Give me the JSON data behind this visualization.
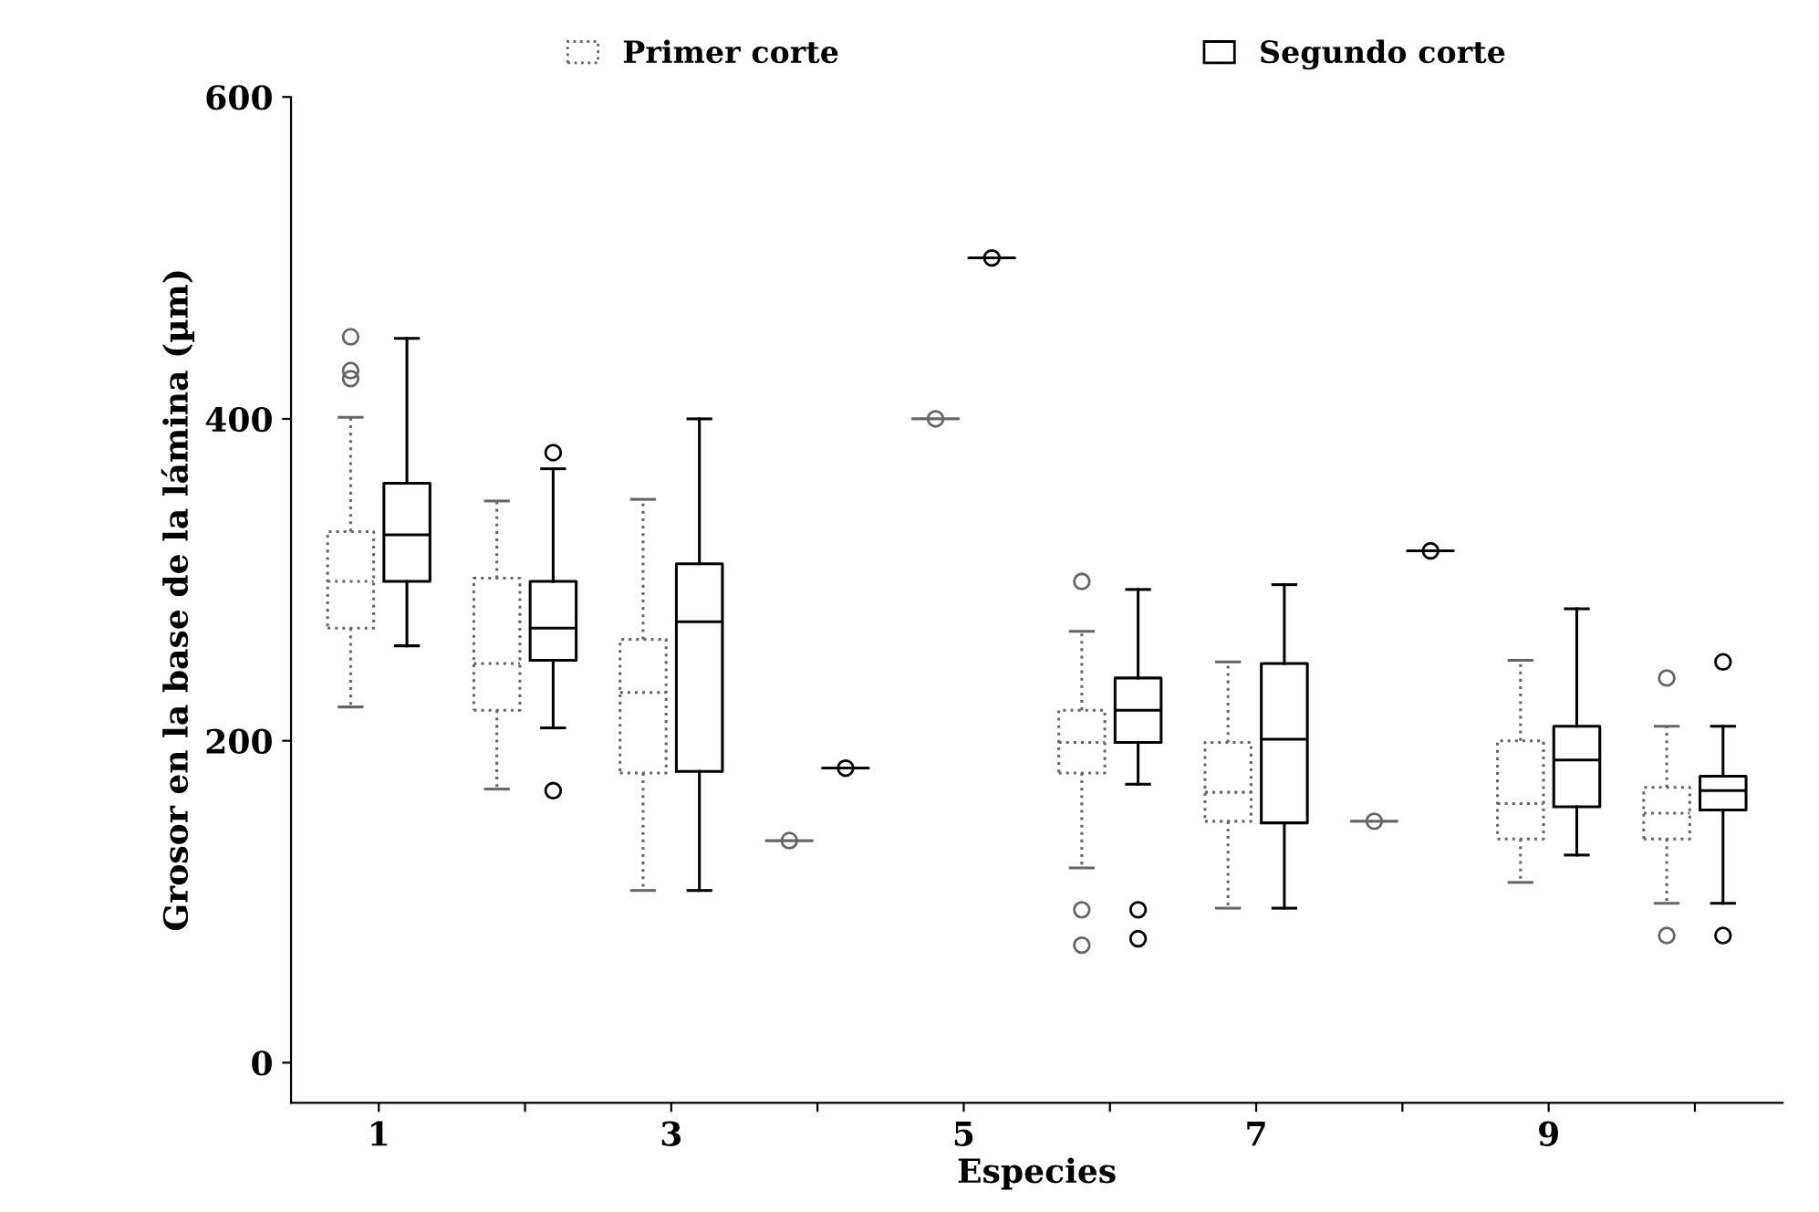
{
  "chart_data": {
    "type": "box",
    "xlabel": "Especies",
    "ylabel": "Grosor en la base de la lámina (µm)",
    "categories": [
      "1",
      null,
      "3",
      null,
      "5",
      null,
      "7",
      null,
      "9",
      null
    ],
    "ylim": [
      -25,
      600
    ],
    "yticks": [
      0,
      200,
      400,
      600
    ],
    "grid": false,
    "legend": "top",
    "series": [
      {
        "name": "Primer corte",
        "color": "#666666",
        "line_style": "dotted",
        "boxes": [
          {
            "low": 221,
            "q1": 270,
            "median": 299,
            "q3": 330,
            "high": 401,
            "outliers": [
              451,
              430,
              425
            ]
          },
          {
            "low": 170,
            "q1": 219,
            "median": 248,
            "q3": 301,
            "high": 349
          },
          {
            "low": 107,
            "q1": 180,
            "median": 230,
            "q3": 263,
            "high": 350
          },
          {
            "low": 138,
            "q1": 138,
            "median": 138,
            "q3": 138,
            "high": 138,
            "outliers": [
              138
            ]
          },
          {
            "low": 400,
            "q1": 400,
            "median": 400,
            "q3": 400,
            "high": 400,
            "outliers": [
              400
            ]
          },
          {
            "low": 121,
            "q1": 180,
            "median": 199,
            "q3": 219,
            "high": 268,
            "outliers": [
              299,
              95,
              73
            ]
          },
          {
            "low": 96,
            "q1": 150,
            "median": 168,
            "q3": 199,
            "high": 249
          },
          {
            "low": 150,
            "q1": 150,
            "median": 150,
            "q3": 150,
            "high": 150,
            "outliers": [
              150
            ]
          },
          {
            "low": 112,
            "q1": 139,
            "median": 161,
            "q3": 200,
            "high": 250
          },
          {
            "low": 99,
            "q1": 139,
            "median": 155,
            "q3": 171,
            "high": 209,
            "outliers": [
              239,
              79
            ]
          }
        ]
      },
      {
        "name": "Segundo corte",
        "color": "#000000",
        "line_style": "solid",
        "boxes": [
          {
            "low": 259,
            "q1": 299,
            "median": 328,
            "q3": 360,
            "high": 450
          },
          {
            "low": 208,
            "q1": 250,
            "median": 270,
            "q3": 299,
            "high": 369,
            "outliers": [
              379,
              169
            ]
          },
          {
            "low": 107,
            "q1": 181,
            "median": 274,
            "q3": 310,
            "high": 400
          },
          {
            "low": 183,
            "q1": 183,
            "median": 183,
            "q3": 183,
            "high": 183,
            "outliers": [
              183
            ]
          },
          {
            "low": 500,
            "q1": 500,
            "median": 500,
            "q3": 500,
            "high": 500,
            "outliers": [
              500
            ]
          },
          {
            "low": 173,
            "q1": 199,
            "median": 219,
            "q3": 239,
            "high": 294,
            "outliers": [
              95,
              77
            ]
          },
          {
            "low": 96,
            "q1": 149,
            "median": 201,
            "q3": 248,
            "high": 297
          },
          {
            "low": 318,
            "q1": 318,
            "median": 318,
            "q3": 318,
            "high": 318,
            "outliers": [
              318
            ]
          },
          {
            "low": 129,
            "q1": 159,
            "median": 188,
            "q3": 209,
            "high": 282
          },
          {
            "low": 99,
            "q1": 157,
            "median": 169,
            "q3": 178,
            "high": 209,
            "outliers": [
              249,
              79
            ]
          }
        ]
      }
    ]
  }
}
